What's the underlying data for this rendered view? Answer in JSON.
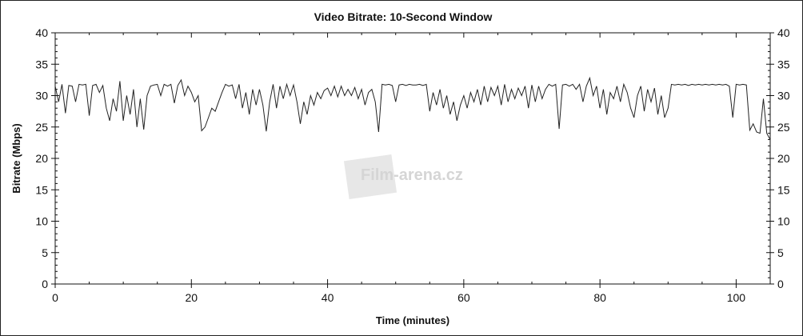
{
  "chart_data": {
    "type": "line",
    "title": "Video Bitrate: 10-Second Window",
    "xlabel": "Time (minutes)",
    "ylabel": "Bitrate (Mbps)",
    "xlim": [
      0,
      105
    ],
    "ylim": [
      0,
      40
    ],
    "xticks": [
      0,
      20,
      40,
      60,
      80,
      100
    ],
    "yticks": [
      0,
      5,
      10,
      15,
      20,
      25,
      30,
      35,
      40
    ],
    "right_axis": true,
    "grid": false,
    "line_color": "#222222",
    "x_step": 0.5,
    "values": [
      31.5,
      29,
      31.8,
      27.2,
      31.6,
      31.5,
      29,
      31.8,
      31.7,
      31.8,
      26.8,
      31.6,
      31.8,
      30.5,
      31.6,
      28,
      26,
      29.5,
      27.5,
      32.3,
      26,
      30,
      27,
      31,
      25,
      29.5,
      24.6,
      30,
      31.5,
      31.7,
      31.8,
      30,
      31.8,
      31.5,
      31.8,
      28.8,
      31.6,
      32.5,
      30,
      31.5,
      30.5,
      29,
      30,
      24.4,
      25,
      26.5,
      28,
      27.5,
      29,
      30.5,
      31.8,
      31.5,
      31.7,
      29.5,
      31.8,
      28,
      30.5,
      27,
      31,
      28.5,
      31,
      28.5,
      24.3,
      29,
      31.8,
      28,
      31.5,
      29.5,
      31.8,
      30,
      31.7,
      29,
      25.5,
      29,
      27,
      30,
      28.5,
      30.5,
      29.5,
      30.8,
      31.2,
      30,
      31.5,
      29.8,
      31.5,
      30,
      31,
      30,
      31.3,
      29.5,
      31,
      28.5,
      30.5,
      31,
      29,
      24.2,
      31.8,
      31.7,
      31.8,
      31.6,
      29,
      31.7,
      31.8,
      31.6,
      31.8,
      31.7,
      31.7,
      31.8,
      31.6,
      31.8,
      27.5,
      30.5,
      28.5,
      31,
      28,
      30,
      27,
      29,
      26,
      28.5,
      30,
      28,
      30.5,
      29,
      31,
      28.5,
      31.5,
      29,
      31.3,
      30,
      31.5,
      28.5,
      31.8,
      29,
      31,
      29.5,
      31.2,
      30,
      31.5,
      28,
      31.7,
      29,
      31.5,
      29.5,
      31,
      31.8,
      31.5,
      31.8,
      24.7,
      31.7,
      31.8,
      31.5,
      31.8,
      31,
      31.8,
      29,
      31.5,
      32.8,
      30,
      31.5,
      28,
      31,
      27,
      30.5,
      29.5,
      31.5,
      29,
      31.8,
      30.5,
      28,
      26.5,
      30,
      31.5,
      27.5,
      31,
      29,
      31.2,
      27,
      30,
      26.5,
      28,
      31.8,
      31.7,
      31.8,
      31.7,
      31.8,
      31.6,
      31.8,
      31.7,
      31.8,
      31.7,
      31.8,
      31.7,
      31.8,
      31.7,
      31.8,
      31.7,
      31.8,
      31.5,
      26.5,
      31.8,
      31.7,
      31.8,
      31.7,
      24.5,
      25.5,
      24.2,
      24,
      29.5,
      24,
      23
    ]
  },
  "watermark": "Film-arena.cz"
}
